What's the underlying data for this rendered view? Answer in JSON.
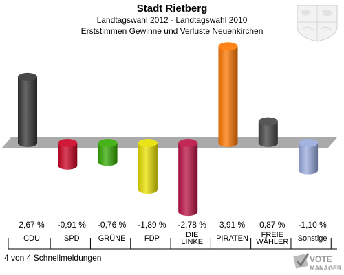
{
  "header": {
    "title": "Stadt Rietberg",
    "subtitle1": "Landtagswahl 2012 - Landtagswahl 2010",
    "subtitle2": "Erststimmen Gewinne und Verluste Neuenkirchen"
  },
  "footer": {
    "text": "4 von 4 Schnellmeldungen"
  },
  "logo": {
    "line1": "VOTE",
    "line2": "MANAGER",
    "icon": "checkmark-ballot-icon"
  },
  "emblem": {
    "icon": "coat-of-arms-icon"
  },
  "chart_data": {
    "type": "bar",
    "categories": [
      "CDU",
      "SPD",
      "GRÜNE",
      "FDP",
      "DIE LINKE",
      "PIRATEN",
      "FREIE WÄHLER",
      "Sonstige"
    ],
    "category_lines": [
      [
        "CDU"
      ],
      [
        "SPD"
      ],
      [
        "GRÜNE"
      ],
      [
        "FDP"
      ],
      [
        "DIE",
        "LINKE"
      ],
      [
        "PIRATEN"
      ],
      [
        "FREIE",
        "WÄHLER"
      ],
      [
        "Sonstige"
      ]
    ],
    "values": [
      2.67,
      -0.91,
      -0.76,
      -1.89,
      -2.78,
      3.91,
      0.87,
      -1.1
    ],
    "value_labels": [
      "2,67 %",
      "-0,91 %",
      "-0,76 %",
      "-1,89 %",
      "-2,78 %",
      "3,91 %",
      "0,87 %",
      "-1,10 %"
    ],
    "colors": [
      "#333333",
      "#cc0022",
      "#33aa00",
      "#e8e000",
      "#bb1144",
      "#ff7700",
      "#444444",
      "#99aadd"
    ],
    "ylim": [
      -2.78,
      3.91
    ]
  }
}
